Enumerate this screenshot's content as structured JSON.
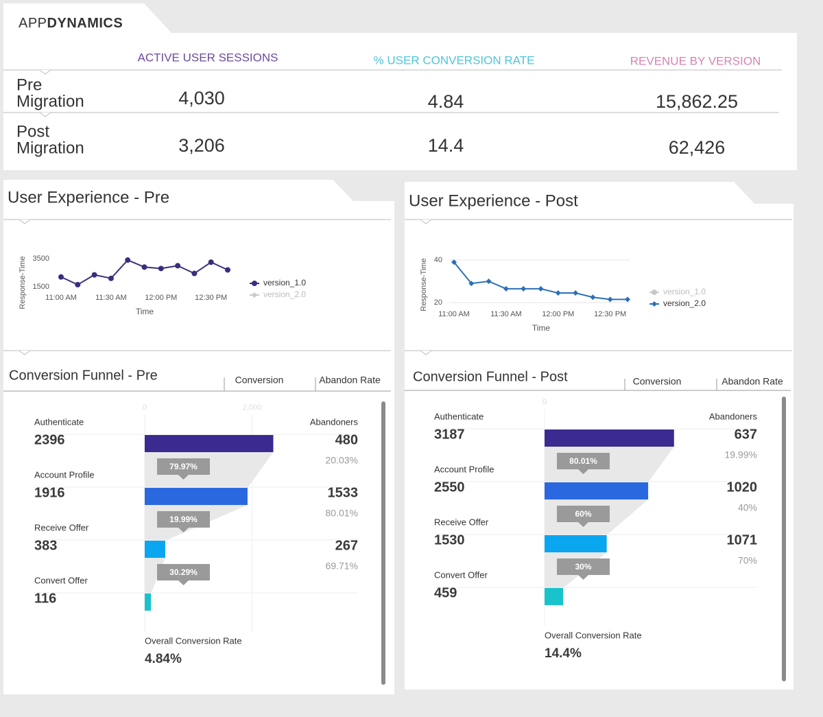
{
  "header": {
    "logo_prefix": "APP",
    "logo_suffix": "DYNAMICS"
  },
  "summary": {
    "columns": [
      "ACTIVE USER SESSIONS",
      "% USER CONVERSION RATE",
      "REVENUE BY VERSION"
    ],
    "column_colors": [
      "#6b4c9a",
      "#4fc4d8",
      "#d682b4"
    ],
    "rows": [
      {
        "label": [
          "Pre",
          "Migration"
        ],
        "values": [
          "4,030",
          "4.84",
          "15,862.25"
        ]
      },
      {
        "label": [
          "Post",
          "Migration"
        ],
        "values": [
          "3,206",
          "14.4",
          "62,426"
        ]
      }
    ]
  },
  "chart_data": [
    {
      "type": "line",
      "title": "User Experience - Pre",
      "x_label": "Time",
      "y_label": "Response-Time",
      "categories": [
        "11:00 AM",
        null,
        null,
        "11:30 AM",
        null,
        null,
        "12:00 PM",
        null,
        null,
        "12:30 PM",
        null
      ],
      "series": [
        {
          "name": "version_1.0",
          "color": "#3b2d7d",
          "marker": "circle",
          "values": [
            2200,
            1650,
            2350,
            2100,
            3400,
            2900,
            2800,
            3000,
            2450,
            3250,
            2700
          ]
        },
        {
          "name": "version_2.0",
          "color": "#c8c8c8",
          "marker": "diamond",
          "values": [
            null,
            null,
            null,
            null,
            null,
            null,
            null,
            null,
            null,
            null,
            null
          ]
        }
      ],
      "ylim": [
        1500,
        3500
      ],
      "yticks": [
        1500,
        3500
      ],
      "grid": false
    },
    {
      "type": "line",
      "title": "User Experience - Post",
      "x_label": "Time",
      "y_label": "Response-Time",
      "categories": [
        "11:00 AM",
        null,
        null,
        "11:30 AM",
        null,
        null,
        "12:00 PM",
        null,
        null,
        "12:30 PM",
        null
      ],
      "series": [
        {
          "name": "version_1.0",
          "color": "#c8c8c8",
          "marker": "circle",
          "values": [
            null,
            null,
            null,
            null,
            null,
            null,
            null,
            null,
            null,
            null,
            null
          ]
        },
        {
          "name": "version_2.0",
          "color": "#2c6fb7",
          "marker": "diamond",
          "values": [
            39,
            29,
            30,
            26.5,
            26.5,
            26.5,
            24.5,
            24.5,
            22.5,
            21.5,
            21.5
          ]
        }
      ],
      "ylim": [
        20,
        40
      ],
      "yticks": [
        20,
        40
      ],
      "grid": true
    }
  ],
  "funnels": [
    {
      "title": "Conversion Funnel - Pre",
      "columns": [
        "Conversion",
        "Abandon Rate"
      ],
      "abandoners_label": "Abandoners",
      "xlim": [
        0,
        4000
      ],
      "xticks": [
        0,
        {
          "value": 2000,
          "label": "2,000"
        }
      ],
      "colors": [
        "#3b2a8f",
        "#2a68df",
        "#0aa6f0",
        "#19c3cc"
      ],
      "stages": [
        {
          "name": "Authenticate",
          "value": 2396,
          "abandoners": 480,
          "abandon_rate": "20.03%",
          "conversion": "79.97%"
        },
        {
          "name": "Account Profile",
          "value": 1916,
          "abandoners": 1533,
          "abandon_rate": "80.01%",
          "conversion": "19.99%"
        },
        {
          "name": "Receive Offer",
          "value": 383,
          "abandoners": 267,
          "abandon_rate": "69.71%",
          "conversion": "30.29%"
        },
        {
          "name": "Convert Offer",
          "value": 116
        }
      ],
      "overall_label": "Overall Conversion Rate",
      "overall": "4.84%"
    },
    {
      "title": "Conversion Funnel - Post",
      "columns": [
        "Conversion",
        "Abandon Rate"
      ],
      "abandoners_label": "Abandoners",
      "xlim": [
        0,
        5250
      ],
      "xticks": [
        0
      ],
      "colors": [
        "#3b2a8f",
        "#2a68df",
        "#0aa6f0",
        "#19c3cc"
      ],
      "stages": [
        {
          "name": "Authenticate",
          "value": 3187,
          "abandoners": 637,
          "abandon_rate": "19.99%",
          "conversion": "80.01%"
        },
        {
          "name": "Account Profile",
          "value": 2550,
          "abandoners": 1020,
          "abandon_rate": "40%",
          "conversion": "60%"
        },
        {
          "name": "Receive Offer",
          "value": 1530,
          "abandoners": 1071,
          "abandon_rate": "70%",
          "conversion": "30%"
        },
        {
          "name": "Convert Offer",
          "value": 459
        }
      ],
      "overall_label": "Overall Conversion Rate",
      "overall": "14.4%"
    }
  ]
}
